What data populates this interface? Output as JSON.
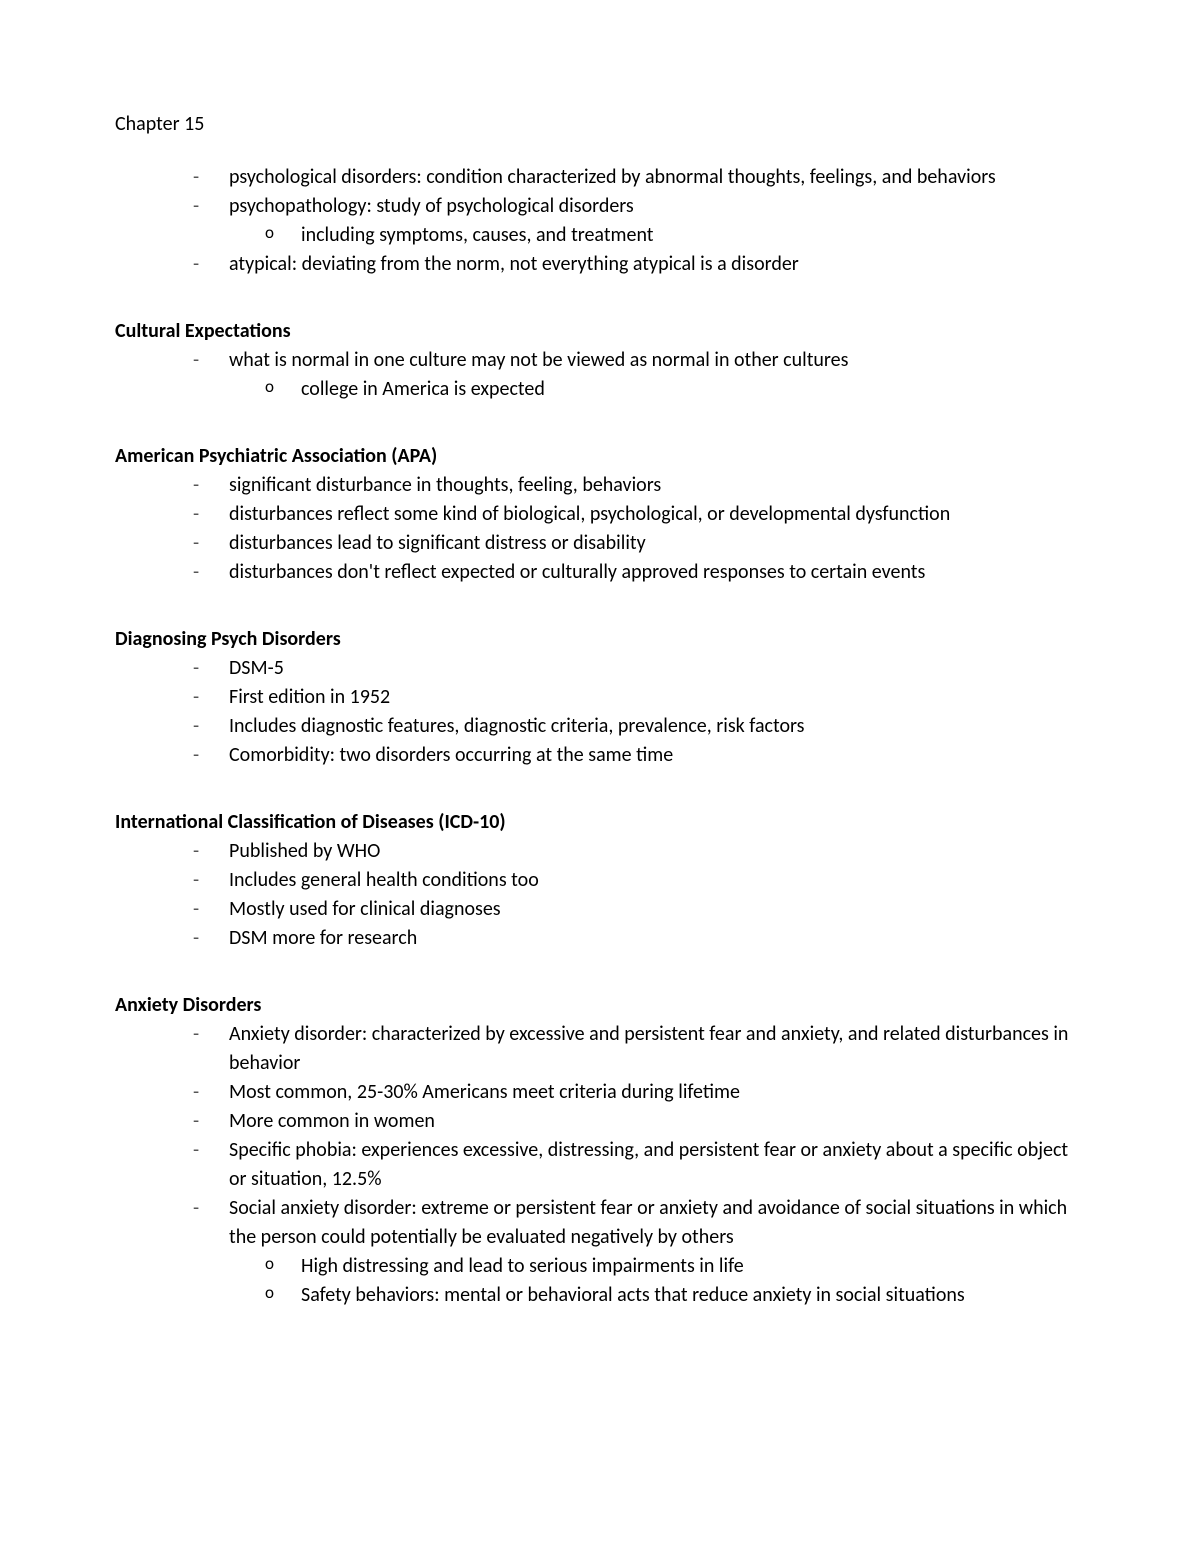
{
  "title": "Chapter 15",
  "intro": [
    "psychological disorders: condition characterized by abnormal thoughts, feelings, and behaviors",
    "psychopathology: study of psychological disorders",
    [
      "including symptoms, causes, and treatment"
    ],
    "atypical: deviating from the norm, not everything atypical is a disorder"
  ],
  "sections": [
    {
      "heading": "Cultural Expectations",
      "items": [
        "what is normal in one culture may not be viewed as normal in other cultures",
        [
          "college in America is expected"
        ]
      ]
    },
    {
      "heading": "American Psychiatric Association (APA)",
      "items": [
        "significant disturbance in thoughts, feeling, behaviors",
        "disturbances reflect some kind of biological, psychological, or developmental dysfunction",
        "disturbances lead to significant distress or disability",
        "disturbances don't reflect expected or culturally approved responses to certain events"
      ]
    },
    {
      "heading": "Diagnosing Psych Disorders",
      "items": [
        "DSM-5",
        "First edition in 1952",
        "Includes diagnostic features, diagnostic criteria, prevalence, risk factors",
        "Comorbidity: two disorders occurring at the same time"
      ]
    },
    {
      "heading": "International Classification of Diseases (ICD-10)",
      "items": [
        "Published by WHO",
        "Includes general health conditions too",
        "Mostly used for clinical diagnoses",
        "DSM more for research"
      ]
    },
    {
      "heading": "Anxiety Disorders",
      "items": [
        "Anxiety disorder: characterized by excessive and persistent fear and anxiety, and related disturbances in behavior",
        "Most common, 25-30% Americans meet criteria during lifetime",
        "More common in women",
        "Specific phobia: experiences excessive, distressing, and persistent fear or anxiety about a specific object or situation, 12.5%",
        "Social anxiety disorder: extreme or persistent fear or anxiety and avoidance of social situations in which the person could potentially be evaluated negatively by others",
        [
          "High distressing and lead to serious impairments in life",
          "Safety behaviors: mental or behavioral acts that reduce anxiety in social situations"
        ]
      ]
    }
  ],
  "colors": {
    "text": "#000000",
    "background": "#ffffff",
    "dash": "#555555"
  },
  "typography": {
    "font_family": "Calibri",
    "body_fontsize": 20,
    "heading_fontweight": "bold"
  }
}
